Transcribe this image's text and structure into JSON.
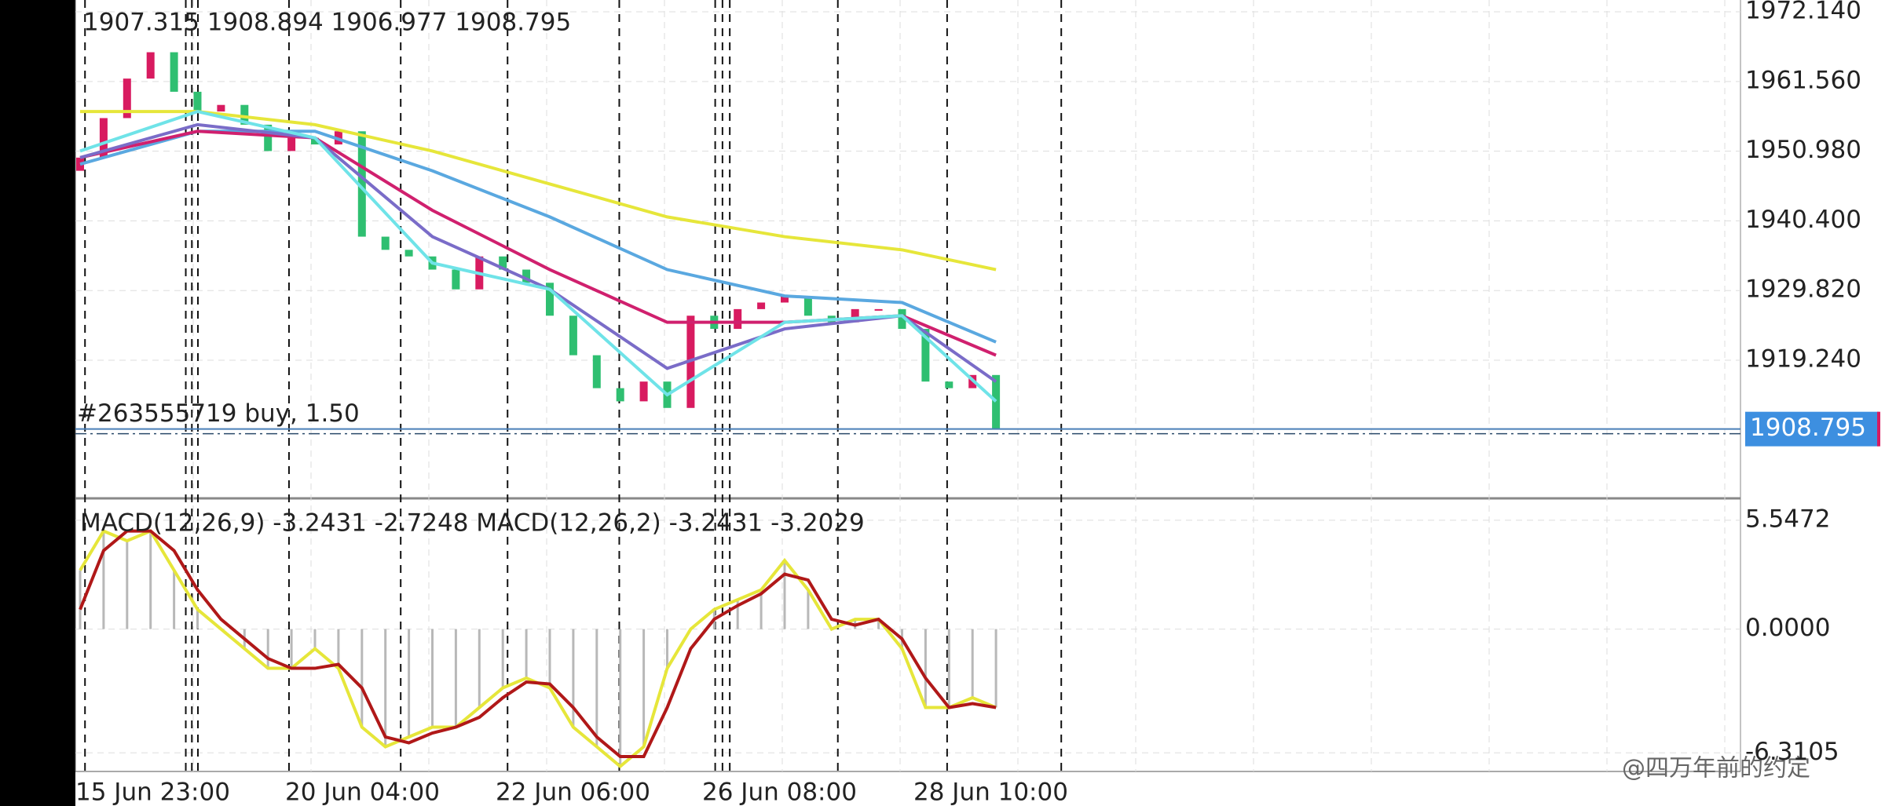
{
  "chart_data": [
    {
      "type": "candlestick",
      "title": "1907.315 1908.894 1906.977 1908.795",
      "open": [
        1948,
        1950,
        1956,
        1962,
        1966,
        1960,
        1957,
        1958,
        1955,
        1951,
        1953,
        1952,
        1954,
        1938,
        1936,
        1935,
        1933,
        1930,
        1935,
        1933,
        1931,
        1926,
        1920,
        1915,
        1913,
        1916,
        1912,
        1926,
        1924,
        1927,
        1928,
        1929,
        1926,
        1925,
        1927,
        1927,
        1924,
        1916,
        1915,
        1917
      ],
      "close": [
        1950,
        1956,
        1962,
        1966,
        1960,
        1957,
        1958,
        1955,
        1951,
        1953,
        1952,
        1954,
        1938,
        1936,
        1935,
        1933,
        1930,
        1935,
        1933,
        1931,
        1926,
        1920,
        1915,
        1913,
        1916,
        1912,
        1926,
        1924,
        1927,
        1928,
        1929,
        1926,
        1925,
        1927,
        1927,
        1924,
        1916,
        1915,
        1917,
        1908.795
      ],
      "up_color": "#d81b60",
      "down_color": "#2fbf71",
      "series": [
        {
          "color": "#e6e63a",
          "x": [
            0,
            5,
            10,
            15,
            20,
            25,
            30,
            35,
            39
          ],
          "values": [
            1957,
            1957,
            1955,
            1951,
            1946,
            1941,
            1938,
            1936,
            1933
          ]
        },
        {
          "color": "#5aa8e0",
          "x": [
            0,
            5,
            10,
            15,
            20,
            25,
            30,
            35,
            39
          ],
          "values": [
            1949,
            1954,
            1954,
            1948,
            1941,
            1933,
            1929,
            1928,
            1922
          ]
        },
        {
          "color": "#d0206e",
          "x": [
            0,
            5,
            10,
            15,
            20,
            25,
            30,
            35,
            39
          ],
          "values": [
            1950,
            1954,
            1953,
            1942,
            1933,
            1925,
            1925,
            1926,
            1920
          ]
        },
        {
          "color": "#7a6cc8",
          "x": [
            0,
            5,
            10,
            15,
            20,
            25,
            30,
            35,
            39
          ],
          "values": [
            1950,
            1955,
            1953,
            1938,
            1930,
            1918,
            1924,
            1926,
            1916
          ]
        },
        {
          "color": "#6fe3e8",
          "x": [
            0,
            5,
            10,
            15,
            20,
            25,
            30,
            35,
            39
          ],
          "values": [
            1951,
            1957,
            1953,
            1934,
            1930,
            1914,
            1925,
            1926,
            1913
          ]
        }
      ],
      "ylim": [
        1898.39,
        1973.93
      ],
      "yticks": [
        {
          "value": 1972.14,
          "label": "1972.140"
        },
        {
          "value": 1961.56,
          "label": "1961.560"
        },
        {
          "value": 1950.98,
          "label": "1950.980"
        },
        {
          "value": 1940.4,
          "label": "1940.400"
        },
        {
          "value": 1929.82,
          "label": "1929.820"
        },
        {
          "value": 1919.24,
          "label": "1919.240"
        }
      ],
      "current_price": 1908.795,
      "order_label": "#263555719 buy, 1.50",
      "grid": true
    },
    {
      "type": "macd",
      "title": "MACD(12,26,9) -3.2431 -2.7248 MACD(12,26,2) -3.2431 -3.2029",
      "series": [
        {
          "color": "#e6e63a",
          "values": [
            3,
            5,
            4.5,
            5,
            3,
            1,
            0,
            -1,
            -2,
            -2,
            -1,
            -2,
            -5,
            -6,
            -5.5,
            -5,
            -5,
            -4,
            -3,
            -2.5,
            -3,
            -5,
            -6,
            -7,
            -6,
            -2,
            0,
            1,
            1.5,
            2,
            3.5,
            2,
            0,
            0.5,
            0.5,
            -1,
            -4,
            -4,
            -3.5,
            -4
          ]
        },
        {
          "color": "#b01818",
          "values": [
            1,
            4,
            5,
            5,
            4,
            2,
            0.5,
            -0.5,
            -1.5,
            -2,
            -2,
            -1.8,
            -3,
            -5.5,
            -5.8,
            -5.3,
            -5,
            -4.5,
            -3.5,
            -2.7,
            -2.8,
            -4,
            -5.5,
            -6.5,
            -6.5,
            -4,
            -1,
            0.5,
            1.2,
            1.8,
            2.8,
            2.5,
            0.5,
            0.2,
            0.5,
            -0.5,
            -2.5,
            -4,
            -3.8,
            -4
          ]
        }
      ],
      "histogram_color": "#b8b8b8",
      "ylim": [
        -7.26,
        6.625
      ],
      "yticks": [
        5.5472,
        {
          "value": 0,
          "label": "0.0000"
        },
        -6.3105
      ],
      "grid": true
    }
  ],
  "x_labels": [
    "15 Jun 23:00",
    "20 Jun 04:00",
    "22 Jun 06:00",
    "26 Jun 08:00",
    "28 Jun 10:00"
  ],
  "watermark": "@四万年前的约定"
}
